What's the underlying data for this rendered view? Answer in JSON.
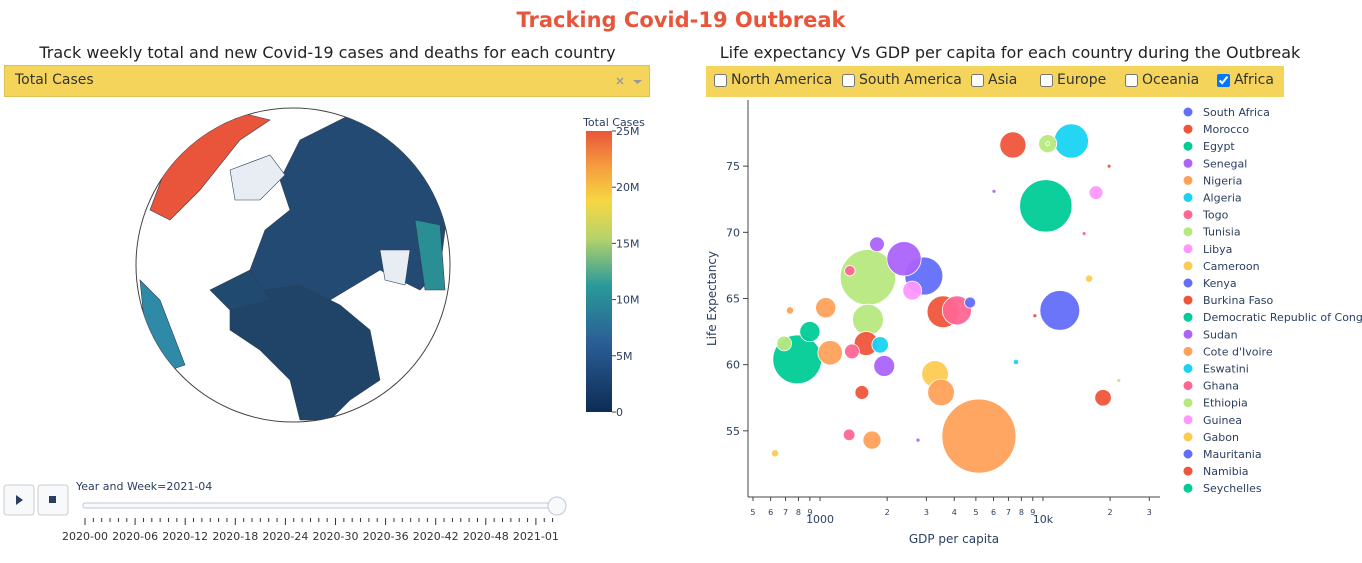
{
  "header": {
    "title": "Tracking Covid-19 Outbreak"
  },
  "left": {
    "title": "Track weekly total and new Covid-19 cases and deaths for each country",
    "dropdown": "Total Cases",
    "colorbar": {
      "title": "Total Cases",
      "lim": [
        0,
        25000000
      ],
      "ticks": [
        0,
        {
          "value": 5000000,
          "label": "5M"
        },
        {
          "value": 10000000,
          "label": "10M"
        },
        {
          "value": 15000000,
          "label": "15M"
        },
        {
          "value": 20000000,
          "label": "20M"
        },
        {
          "value": 25000000,
          "label": "25M"
        }
      ]
    },
    "slider": {
      "current": "Year and Week=2021-04",
      "labels": [
        "2020-00",
        "2020-06",
        "2020-12",
        "2020-18",
        "2020-24",
        "2020-30",
        "2020-36",
        "2020-42",
        "2020-48",
        "2021-01"
      ]
    }
  },
  "right": {
    "title": "Life expectancy Vs GDP per capita for each country during the Outbreak",
    "checkboxes": [
      {
        "label": "North America",
        "checked": false
      },
      {
        "label": "South America",
        "checked": false
      },
      {
        "label": "Asia",
        "checked": false
      },
      {
        "label": "Europe",
        "checked": false
      },
      {
        "label": "Oceania",
        "checked": false
      },
      {
        "label": "Africa",
        "checked": true
      }
    ]
  },
  "chart_data": {
    "type": "scatter",
    "xlabel": "GDP per capita",
    "ylabel": "Life Expectancy",
    "log_x": true,
    "xlim": [
      475,
      33500
    ],
    "ylim": [
      50,
      80
    ],
    "xticks": [
      {
        "value": 500,
        "label": "5"
      },
      {
        "value": 600,
        "label": "6"
      },
      {
        "value": 700,
        "label": "7"
      },
      {
        "value": 800,
        "label": "8"
      },
      {
        "value": 900,
        "label": "9"
      },
      1000,
      {
        "value": 2000,
        "label": "2"
      },
      {
        "value": 3000,
        "label": "3"
      },
      {
        "value": 4000,
        "label": "4"
      },
      {
        "value": 5000,
        "label": "5"
      },
      {
        "value": 6000,
        "label": "6"
      },
      {
        "value": 7000,
        "label": "7"
      },
      {
        "value": 8000,
        "label": "8"
      },
      {
        "value": 9000,
        "label": "9"
      },
      {
        "value": 10000,
        "label": "10k"
      },
      {
        "value": 20000,
        "label": "2"
      },
      {
        "value": 30000,
        "label": "3"
      }
    ],
    "yticks": [
      55,
      60,
      65,
      70,
      75
    ],
    "series": [
      {
        "name": "South Africa",
        "color": "#636efa",
        "x": [
          11900
        ],
        "values": [
          64.1
        ],
        "sizes": [
          58
        ]
      },
      {
        "name": "Morocco",
        "color": "#EF553B",
        "x": [
          3560
        ],
        "values": [
          64.0
        ],
        "sizes": [
          37
        ]
      },
      {
        "name": "Egypt",
        "color": "#00cc96",
        "x": [
          10300
        ],
        "values": [
          72.0
        ],
        "sizes": [
          100
        ]
      },
      {
        "name": "Senegal",
        "color": "#ab63fa",
        "x": [
          1940
        ],
        "values": [
          59.9
        ],
        "sizes": [
          16
        ]
      },
      {
        "name": "Nigeria",
        "color": "#FFA15A",
        "x": [
          5160
        ],
        "values": [
          54.6
        ],
        "sizes": [
          200
        ]
      },
      {
        "name": "Algeria",
        "color": "#19d3f3",
        "x": [
          13400
        ],
        "values": [
          76.9
        ],
        "sizes": [
          43
        ]
      },
      {
        "name": "Togo",
        "color": "#FF6692",
        "x": [
          1390
        ],
        "values": [
          61.0
        ],
        "sizes": [
          8
        ]
      },
      {
        "name": "Tunisia",
        "color": "#B6E880",
        "x": [
          10500
        ],
        "values": [
          76.7
        ],
        "sizes": [
          12
        ]
      },
      {
        "name": "Libya",
        "color": "#FF97FF",
        "x": [
          17300
        ],
        "values": [
          73.0
        ],
        "sizes": [
          7
        ]
      },
      {
        "name": "Cameroon",
        "color": "#FECB52",
        "x": [
          3280
        ],
        "values": [
          59.3
        ],
        "sizes": [
          26
        ]
      },
      {
        "name": "Kenya",
        "color": "#636efa",
        "x": [
          2920
        ],
        "values": [
          66.7
        ],
        "sizes": [
          53
        ]
      },
      {
        "name": "Burkina Faso",
        "color": "#EF553B",
        "x": [
          1610
        ],
        "values": [
          61.6
        ],
        "sizes": [
          21
        ]
      },
      {
        "name": "Democratic Republic of Congo",
        "color": "#00cc96",
        "x": [
          790
        ],
        "values": [
          60.4
        ],
        "sizes": [
          87
        ]
      },
      {
        "name": "Sudan",
        "color": "#ab63fa",
        "x": [
          2380
        ],
        "values": [
          68.0
        ],
        "sizes": [
          43
        ]
      },
      {
        "name": "Cote d'Ivoire",
        "color": "#FFA15A",
        "x": [
          3490
        ],
        "values": [
          57.9
        ],
        "sizes": [
          26
        ]
      },
      {
        "name": "Eswatini",
        "color": "#19d3f3",
        "x": [
          7570
        ],
        "values": [
          60.2
        ],
        "sizes": [
          1.1
        ]
      },
      {
        "name": "Ghana",
        "color": "#FF6692",
        "x": [
          4110
        ],
        "values": [
          64.1
        ],
        "sizes": [
          31
        ]
      },
      {
        "name": "Ethiopia",
        "color": "#B6E880",
        "x": [
          1640
        ],
        "values": [
          66.6
        ],
        "sizes": [
          112
        ]
      },
      {
        "name": "Guinea",
        "color": "#FF97FF",
        "x": [
          2590
        ],
        "values": [
          65.6
        ],
        "sizes": [
          13
        ]
      },
      {
        "name": "Gabon",
        "color": "#FECB52",
        "x": [
          16100
        ],
        "values": [
          66.5
        ],
        "sizes": [
          2
        ]
      },
      {
        "name": "Mauritania",
        "color": "#636efa",
        "x": [
          4710
        ],
        "values": [
          64.7
        ],
        "sizes": [
          4.5
        ]
      },
      {
        "name": "Namibia",
        "color": "#EF553B",
        "x": [
          7330
        ],
        "values": [
          76.6
        ],
        "sizes": [
          25
        ]
      },
      {
        "name": "Seychelles",
        "color": "#00cc96",
        "x": [
          900
        ],
        "values": [
          62.5
        ],
        "sizes": [
          15
        ]
      },
      {
        "color": "#FECB52",
        "x": [
          628
        ],
        "values": [
          53.3
        ],
        "sizes": [
          2
        ]
      },
      {
        "color": "#FFA15A",
        "x": [
          733,
          1060,
          1110,
          1710
        ],
        "values": [
          64.1,
          64.3,
          60.9,
          54.3
        ],
        "sizes": [
          2,
          15,
          22,
          12
        ]
      },
      {
        "color": "#FF6692",
        "x": [
          1350,
          1360,
          15300
        ],
        "values": [
          54.7,
          67.1,
          69.9
        ],
        "sizes": [
          5,
          4,
          0.5
        ]
      },
      {
        "color": "#EF553B",
        "x": [
          1540,
          18600,
          19800,
          9200
        ],
        "values": [
          57.9,
          57.5,
          75.0,
          63.7
        ],
        "sizes": [
          7,
          10,
          0.3,
          0.5
        ]
      },
      {
        "color": "#ab63fa",
        "x": [
          1800,
          2750,
          6030
        ],
        "values": [
          69.1,
          54.3,
          73.1
        ],
        "sizes": [
          8,
          0.5,
          0.2
        ]
      },
      {
        "color": "#B6E880",
        "x": [
          1640,
          690,
          21900,
          10500
        ],
        "values": [
          63.4,
          61.6,
          58.8,
          76.7
        ],
        "sizes": [
          35,
          8,
          0.3,
          0.1
        ]
      },
      {
        "color": "#19d3f3",
        "x": [
          1860
        ],
        "values": [
          61.5
        ],
        "sizes": [
          10
        ]
      }
    ],
    "size_max": 200,
    "legend": "right"
  }
}
